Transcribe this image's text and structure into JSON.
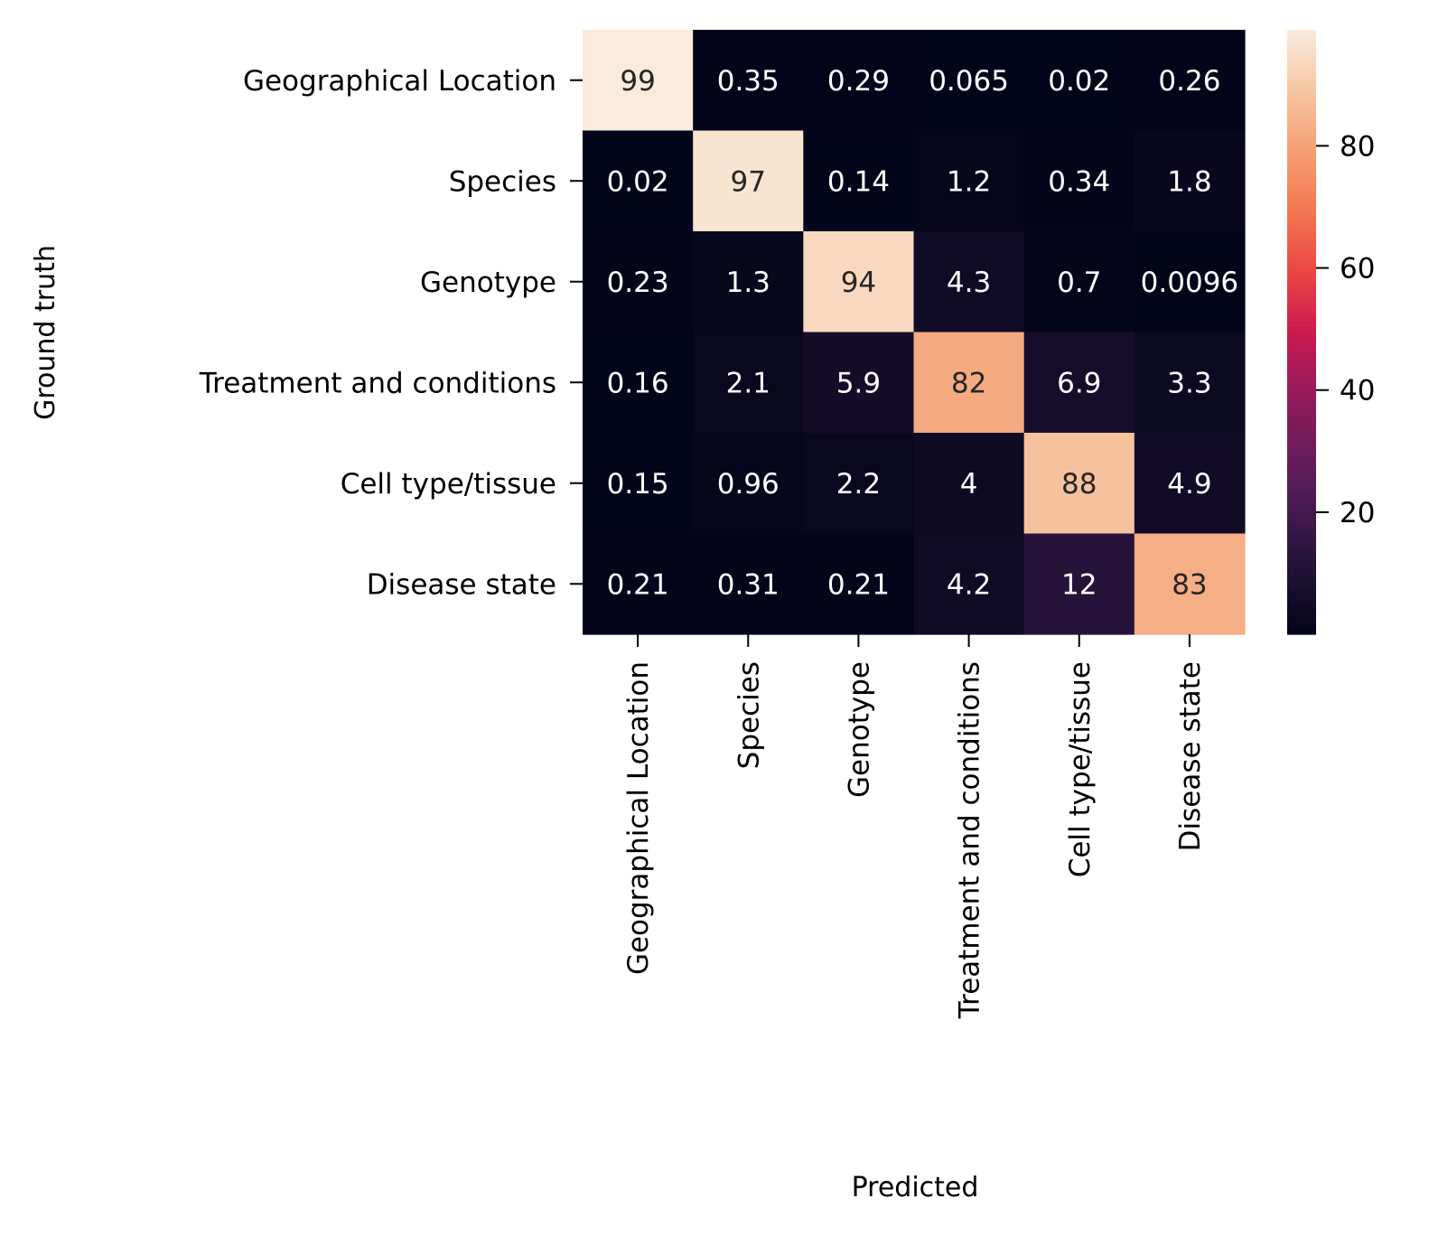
{
  "chart_data": {
    "type": "heatmap",
    "title": "",
    "xlabel": "Predicted",
    "ylabel": "Ground truth",
    "rows": [
      "Geographical Location",
      "Species",
      "Genotype",
      "Treatment and conditions",
      "Cell type/tissue",
      "Disease state"
    ],
    "columns": [
      "Geographical Location",
      "Species",
      "Genotype",
      "Treatment and conditions",
      "Cell type/tissue",
      "Disease state"
    ],
    "values": [
      [
        99,
        0.35,
        0.29,
        0.065,
        0.02,
        0.26
      ],
      [
        0.02,
        97,
        0.14,
        1.2,
        0.34,
        1.8
      ],
      [
        0.23,
        1.3,
        94,
        4.3,
        0.7,
        0.0096
      ],
      [
        0.16,
        2.1,
        5.9,
        82,
        6.9,
        3.3
      ],
      [
        0.15,
        0.96,
        2.2,
        4,
        88,
        4.9
      ],
      [
        0.21,
        0.31,
        0.21,
        4.2,
        12,
        83
      ]
    ],
    "labels": [
      [
        "99",
        "0.35",
        "0.29",
        "0.065",
        "0.02",
        "0.26"
      ],
      [
        "0.02",
        "97",
        "0.14",
        "1.2",
        "0.34",
        "1.8"
      ],
      [
        "0.23",
        "1.3",
        "94",
        "4.3",
        "0.7",
        "0.0096"
      ],
      [
        "0.16",
        "2.1",
        "5.9",
        "82",
        "6.9",
        "3.3"
      ],
      [
        "0.15",
        "0.96",
        "2.2",
        "4",
        "88",
        "4.9"
      ],
      [
        "0.21",
        "0.31",
        "0.21",
        "4.2",
        "12",
        "83"
      ]
    ],
    "colorbar": {
      "colormap": "rocket",
      "range": [
        0.0096,
        99
      ],
      "ticks": [
        20,
        40,
        60,
        80
      ]
    },
    "grid": false
  }
}
